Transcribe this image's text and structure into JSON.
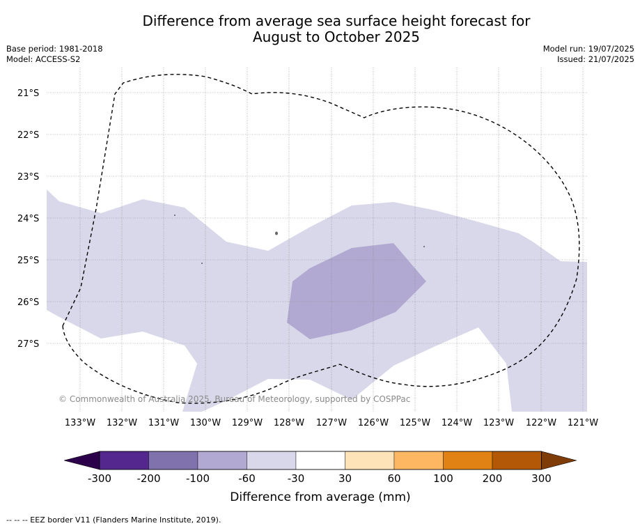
{
  "title_line1": "Difference from average sea surface height forecast for",
  "title_line2": "August to October 2025",
  "meta_left": {
    "base_period": "Base period: 1981-2018",
    "model": "Model: ACCESS-S2"
  },
  "meta_right": {
    "model_run": "Model run: 19/07/2025",
    "issued": "Issued: 21/07/2025"
  },
  "copyright": "© Commonwealth of Australia 2025, Bureau of Meteorology, supported by COSPPac",
  "lon_labels": [
    "133°W",
    "132°W",
    "131°W",
    "130°W",
    "129°W",
    "128°W",
    "127°W",
    "126°W",
    "125°W",
    "124°W",
    "123°W",
    "122°W",
    "121°W"
  ],
  "lat_labels": [
    "21°S",
    "22°S",
    "23°S",
    "24°S",
    "25°S",
    "26°S",
    "27°S"
  ],
  "colorbar": {
    "label": "Difference from average (mm)",
    "ticks": [
      "-300",
      "-200",
      "-100",
      "-60",
      "-30",
      "30",
      "60",
      "100",
      "200",
      "300"
    ],
    "colors": [
      "#54278f",
      "#7f72ad",
      "#b1a9d1",
      "#d8d8ea",
      "#ffffff",
      "#fee2b8",
      "#fdb763",
      "#e08214",
      "#b35806"
    ],
    "under_color": "#2d004b",
    "over_color": "#7f3b08"
  },
  "footer": "--  --  -- EEZ border V11 (Flanders Marine Institute, 2019)."
}
